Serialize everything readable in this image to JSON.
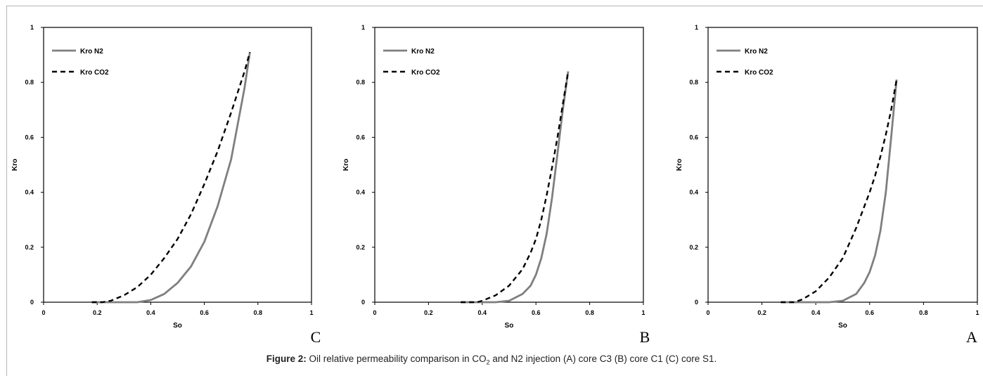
{
  "chart_data": [
    {
      "type": "line",
      "panel_label": "C",
      "xlabel": "So",
      "ylabel": "Kro",
      "xlim": [
        0,
        1
      ],
      "ylim": [
        0,
        1
      ],
      "xticks": [
        "0",
        "0.2",
        "0.4",
        "0.6",
        "0.8",
        "1"
      ],
      "yticks": [
        "0",
        "0.2",
        "0.4",
        "0.6",
        "0.8",
        "1"
      ],
      "grid": false,
      "legend": "top-left",
      "series": [
        {
          "name": "Kro N2",
          "style": "solid",
          "color": "#7f7f7f",
          "x": [
            0.18,
            0.25,
            0.3,
            0.35,
            0.4,
            0.45,
            0.5,
            0.55,
            0.6,
            0.65,
            0.7,
            0.75,
            0.77
          ],
          "y": [
            0,
            0,
            0,
            0,
            0.008,
            0.03,
            0.07,
            0.13,
            0.22,
            0.35,
            0.52,
            0.78,
            0.91
          ]
        },
        {
          "name": "Kro CO2",
          "style": "dashed",
          "color": "#000000",
          "x": [
            0.18,
            0.22,
            0.25,
            0.3,
            0.35,
            0.4,
            0.45,
            0.5,
            0.55,
            0.6,
            0.65,
            0.7,
            0.75,
            0.77
          ],
          "y": [
            0,
            0,
            0.005,
            0.025,
            0.055,
            0.1,
            0.16,
            0.23,
            0.32,
            0.43,
            0.55,
            0.69,
            0.84,
            0.91
          ]
        }
      ]
    },
    {
      "type": "line",
      "panel_label": "B",
      "xlabel": "So",
      "ylabel": "Kro",
      "xlim": [
        0,
        1
      ],
      "ylim": [
        0,
        1
      ],
      "xticks": [
        "0",
        "0.2",
        "0.4",
        "0.6",
        "0.8",
        "1"
      ],
      "yticks": [
        "0",
        "0.2",
        "0.4",
        "0.6",
        "0.8",
        "1"
      ],
      "grid": false,
      "legend": "top-left",
      "series": [
        {
          "name": "Kro N2",
          "style": "solid",
          "color": "#7f7f7f",
          "x": [
            0.32,
            0.4,
            0.45,
            0.5,
            0.55,
            0.58,
            0.6,
            0.62,
            0.64,
            0.66,
            0.68,
            0.7,
            0.72
          ],
          "y": [
            0,
            0,
            0,
            0.005,
            0.03,
            0.06,
            0.1,
            0.16,
            0.25,
            0.38,
            0.54,
            0.7,
            0.84
          ]
        },
        {
          "name": "Kro CO2",
          "style": "dashed",
          "color": "#000000",
          "x": [
            0.32,
            0.38,
            0.4,
            0.45,
            0.5,
            0.55,
            0.58,
            0.6,
            0.62,
            0.64,
            0.66,
            0.68,
            0.7,
            0.72
          ],
          "y": [
            0,
            0,
            0.005,
            0.025,
            0.06,
            0.12,
            0.18,
            0.23,
            0.3,
            0.39,
            0.49,
            0.6,
            0.72,
            0.84
          ]
        }
      ]
    },
    {
      "type": "line",
      "panel_label": "A",
      "xlabel": "So",
      "ylabel": "Kro",
      "xlim": [
        0,
        1
      ],
      "ylim": [
        0,
        1
      ],
      "xticks": [
        "0",
        "0.2",
        "0.4",
        "0.6",
        "0.8",
        "1"
      ],
      "yticks": [
        "0",
        "0.2",
        "0.4",
        "0.6",
        "0.8",
        "1"
      ],
      "grid": false,
      "legend": "top-left",
      "series": [
        {
          "name": "Kro N2",
          "style": "solid",
          "color": "#7f7f7f",
          "x": [
            0.27,
            0.35,
            0.4,
            0.45,
            0.5,
            0.55,
            0.58,
            0.6,
            0.62,
            0.64,
            0.66,
            0.68,
            0.7
          ],
          "y": [
            0,
            0,
            0,
            0,
            0.005,
            0.03,
            0.07,
            0.11,
            0.17,
            0.26,
            0.4,
            0.6,
            0.81
          ]
        },
        {
          "name": "Kro CO2",
          "style": "dashed",
          "color": "#000000",
          "x": [
            0.27,
            0.32,
            0.35,
            0.4,
            0.45,
            0.5,
            0.55,
            0.6,
            0.62,
            0.64,
            0.66,
            0.68,
            0.7
          ],
          "y": [
            0,
            0,
            0.01,
            0.04,
            0.09,
            0.16,
            0.27,
            0.4,
            0.46,
            0.53,
            0.61,
            0.7,
            0.81
          ]
        }
      ]
    }
  ],
  "caption": {
    "label": "Figure 2:",
    "text_before_sub": " Oil relative permeability comparison in CO",
    "sub": "2",
    "text_after_sub": " and N2 injection (A) core C3 (B) core C1 (C) core S1."
  }
}
